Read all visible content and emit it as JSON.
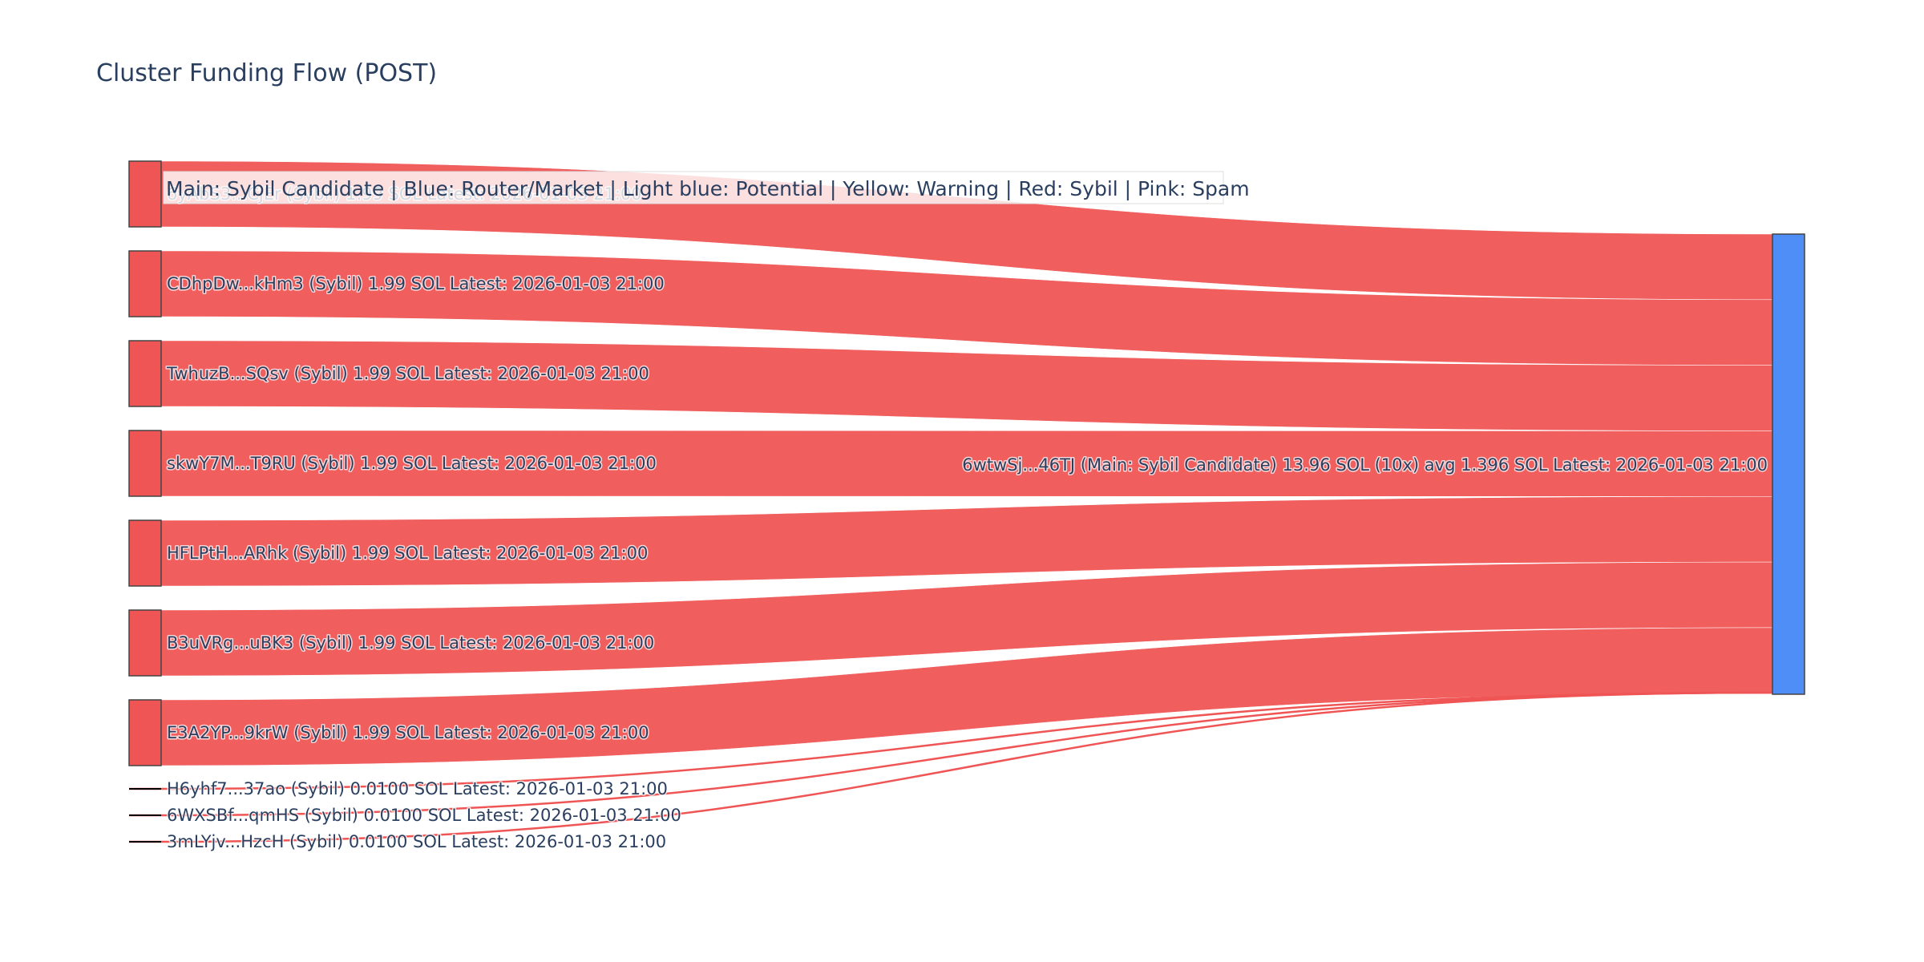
{
  "chart_data": {
    "type": "sankey",
    "title": "Cluster Funding Flow (POST)",
    "legend_note": "Main: Sybil Candidate  |  Blue: Router/Market | Light blue: Potential | Yellow: Warning | Red: Sybil | Pink: Spam",
    "colors": {
      "sybil": "#ef5555",
      "main": "#4f8ef7",
      "node_border": "#444444"
    },
    "target": {
      "label": "6wtwSj...46TJ (Main: Sybil Candidate) 13.96 SOL (10x) avg 1.396 SOL Latest: 2026-01-03 21:00",
      "value": 13.96,
      "role": "main"
    },
    "sources": [
      {
        "label": "6yAbS3...CjEr (Sybil) 1.99 SOL Latest: 2026-01-03 21:00",
        "value": 1.99,
        "role": "sybil"
      },
      {
        "label": "CDhpDw...kHm3 (Sybil) 1.99 SOL Latest: 2026-01-03 21:00",
        "value": 1.99,
        "role": "sybil"
      },
      {
        "label": "TwhuzB...SQsv (Sybil) 1.99 SOL Latest: 2026-01-03 21:00",
        "value": 1.99,
        "role": "sybil"
      },
      {
        "label": "skwY7M...T9RU (Sybil) 1.99 SOL Latest: 2026-01-03 21:00",
        "value": 1.99,
        "role": "sybil"
      },
      {
        "label": "HFLPtH...ARhk (Sybil) 1.99 SOL Latest: 2026-01-03 21:00",
        "value": 1.99,
        "role": "sybil"
      },
      {
        "label": "B3uVRg...uBK3 (Sybil) 1.99 SOL Latest: 2026-01-03 21:00",
        "value": 1.99,
        "role": "sybil"
      },
      {
        "label": "E3A2YP...9krW (Sybil) 1.99 SOL Latest: 2026-01-03 21:00",
        "value": 1.99,
        "role": "sybil"
      },
      {
        "label": "H6yhf7...37ao (Sybil) 0.0100 SOL Latest: 2026-01-03 21:00",
        "value": 0.01,
        "role": "sybil"
      },
      {
        "label": "6WXSBf...qmHS (Sybil) 0.0100 SOL Latest: 2026-01-03 21:00",
        "value": 0.01,
        "role": "sybil"
      },
      {
        "label": "3mLYjv...HzcH (Sybil) 0.0100 SOL Latest: 2026-01-03 21:00",
        "value": 0.01,
        "role": "sybil"
      }
    ]
  }
}
